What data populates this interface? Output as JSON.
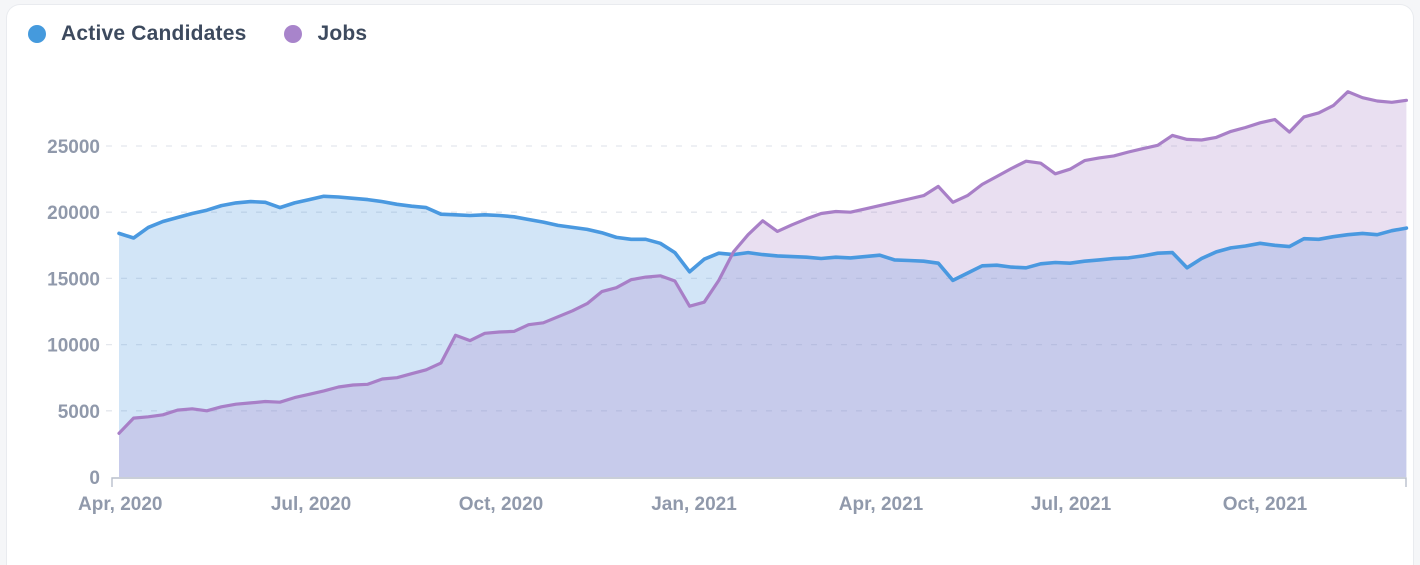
{
  "legend": [
    {
      "label": "Active Candidates",
      "color": "#459add"
    },
    {
      "label": "Jobs",
      "color": "#a884cb"
    }
  ],
  "chart_data": {
    "type": "area",
    "title": "",
    "xlabel": "",
    "ylabel": "",
    "cadence": "weekly",
    "x_range": [
      "Apr 2020",
      "Dec 2021"
    ],
    "ylim": [
      0,
      30000
    ],
    "y_ticks": [
      0,
      5000,
      10000,
      15000,
      20000,
      25000
    ],
    "x_tick_labels": [
      "Apr, 2020",
      "Jul, 2020",
      "Oct, 2020",
      "Jan, 2021",
      "Apr, 2021",
      "Jul, 2021",
      "Oct, 2021"
    ],
    "grid": "dashed-horizontal",
    "legend_position": "top-left",
    "colors": {
      "candidates_line": "#4a99e0",
      "candidates_fill": "rgba(74,153,224,0.25)",
      "jobs_line": "#a87fc7",
      "jobs_fill": "rgba(168,127,199,0.25)",
      "grid_line": "#e4e7ed",
      "axis_text": "#9099ab",
      "axis_domain": "#b8bfcc"
    },
    "series": [
      {
        "name": "Active Candidates",
        "values": [
          18400,
          18050,
          18850,
          19300,
          19600,
          19900,
          20150,
          20500,
          20700,
          20800,
          20750,
          20350,
          20700,
          20950,
          21200,
          21150,
          21050,
          20950,
          20800,
          20600,
          20450,
          20350,
          19850,
          19800,
          19750,
          19800,
          19750,
          19650,
          19450,
          19250,
          19000,
          18850,
          18700,
          18450,
          18100,
          17950,
          17950,
          17650,
          16950,
          15500,
          16450,
          16900,
          16800,
          16950,
          16800,
          16700,
          16650,
          16600,
          16500,
          16600,
          16550,
          16650,
          16750,
          16400,
          16350,
          16300,
          16150,
          14850,
          15400,
          15950,
          16000,
          15850,
          15800,
          16100,
          16200,
          16150,
          16300,
          16400,
          16500,
          16550,
          16700,
          16900,
          16950,
          15800,
          16500,
          17000,
          17300,
          17450,
          17650,
          17500,
          17400,
          18000,
          17950,
          18150,
          18300,
          18400,
          18300,
          18600,
          18800
        ]
      },
      {
        "name": "Jobs",
        "values": [
          3300,
          4450,
          4550,
          4700,
          5050,
          5150,
          5000,
          5300,
          5500,
          5600,
          5700,
          5650,
          6000,
          6250,
          6500,
          6800,
          6950,
          7000,
          7400,
          7500,
          7800,
          8100,
          8600,
          10700,
          10300,
          10850,
          10950,
          11000,
          11500,
          11650,
          12100,
          12550,
          13100,
          14000,
          14300,
          14900,
          15100,
          15200,
          14800,
          12900,
          13200,
          14850,
          17000,
          18300,
          19350,
          18550,
          19050,
          19500,
          19900,
          20050,
          20000,
          20250,
          20500,
          20750,
          21000,
          21250,
          21950,
          20750,
          21250,
          22100,
          22700,
          23300,
          23850,
          23700,
          22900,
          23250,
          23900,
          24100,
          24250,
          24550,
          24800,
          25050,
          25800,
          25500,
          25450,
          25650,
          26100,
          26400,
          26750,
          27000,
          26050,
          27200,
          27500,
          28050,
          29100,
          28650,
          28400,
          28300,
          28450
        ]
      }
    ]
  }
}
